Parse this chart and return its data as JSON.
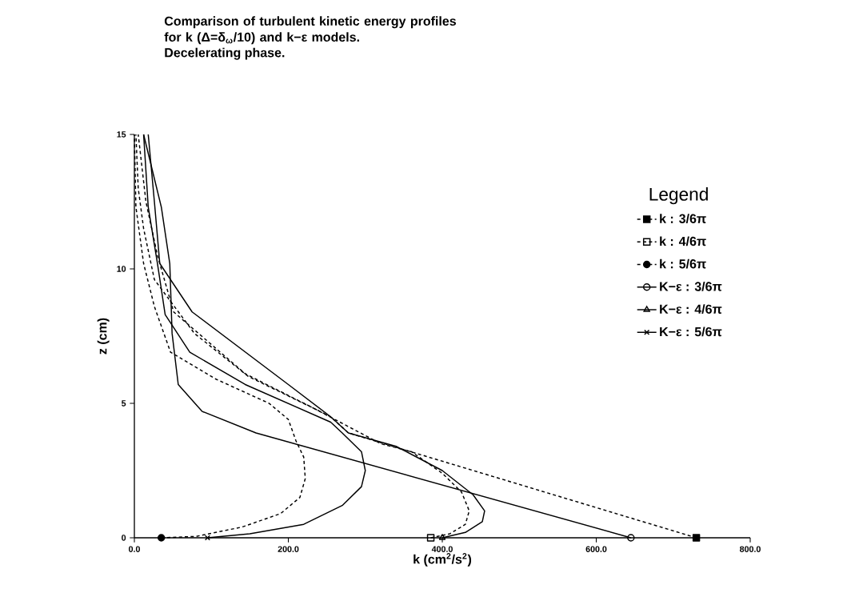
{
  "chart_data": {
    "type": "line",
    "title": "Comparison of turbulent kinetic energy profiles for k (Δ=δ$_{ω}$/10) and k−ε models.",
    "subtitle": "Decelerating phase.",
    "xlabel": "k (cm$^{2}$/s$^{2}$)",
    "ylabel": "z (cm)",
    "legend_title": "Legend",
    "xlim": [
      0,
      800
    ],
    "ylim": [
      0,
      15
    ],
    "xticks": [
      {
        "value": 0,
        "label": "0.0"
      },
      {
        "value": 200,
        "label": "200.0"
      },
      {
        "value": 400,
        "label": "400.0"
      },
      {
        "value": 600,
        "label": "600.0"
      },
      {
        "value": 800,
        "label": "800.0"
      }
    ],
    "yticks": [
      0,
      5,
      10,
      15
    ],
    "grid": false,
    "legend": "right",
    "series": [
      {
        "name": "k     : 3/6π",
        "color": "#000000",
        "line_style": "dashed",
        "x": [
          730,
          278,
          255,
          144,
          51,
          30,
          15,
          5
        ],
        "values": [
          0,
          3.9,
          4.5,
          6.1,
          8.4,
          10.5,
          12.5,
          15
        ]
      },
      {
        "type": "scatter",
        "color": "#000000",
        "marker": "square",
        "x": [
          730
        ],
        "values": [
          0
        ]
      },
      {
        "name": "k     : 4/6π",
        "color": "#000000",
        "line_style": "dashed",
        "x": [
          385,
          410,
          430,
          435,
          425,
          400,
          360,
          320,
          234,
          148,
          78,
          26,
          12,
          5,
          2
        ],
        "values": [
          0,
          0.15,
          0.5,
          1.0,
          1.7,
          2.4,
          3.2,
          3.5,
          4.8,
          6.0,
          7.6,
          9.6,
          11.5,
          13,
          15
        ]
      },
      {
        "type": "scatter",
        "color": "#000000",
        "marker": "square",
        "x": [
          385
        ],
        "values": [
          0
        ]
      },
      {
        "name": "k     : 5/6π",
        "color": "#000000",
        "line_style": "dashed",
        "x": [
          35,
          80,
          140,
          190,
          215,
          222,
          220,
          210,
          200,
          175,
          106,
          47,
          26,
          12,
          2,
          0
        ],
        "values": [
          0,
          0.05,
          0.4,
          0.9,
          1.5,
          2.2,
          3.0,
          3.6,
          4.4,
          5.0,
          5.9,
          6.9,
          8.6,
          10.2,
          12.3,
          15
        ]
      },
      {
        "type": "scatter",
        "color": "#000000",
        "marker": "circle",
        "x": [
          35
        ],
        "values": [
          0
        ]
      },
      {
        "name": "K−ε : 3/6π",
        "color": "#000000",
        "line_style": "solid",
        "x": [
          645,
          158,
          88,
          57,
          49,
          46,
          35,
          12
        ],
        "values": [
          0,
          3.9,
          4.7,
          5.7,
          7.6,
          10.2,
          12.3,
          15
        ]
      },
      {
        "type": "scatter",
        "color": "#000000",
        "marker": "circle",
        "x": [
          645
        ],
        "values": [
          0
        ]
      },
      {
        "name": "K−ε : 4/6π",
        "color": "#000000",
        "line_style": "solid",
        "x": [
          400,
          430,
          452,
          455,
          440,
          400,
          340,
          278,
          255,
          200,
          75,
          33,
          26,
          18
        ],
        "values": [
          0,
          0.2,
          0.6,
          1.0,
          1.6,
          2.5,
          3.4,
          3.9,
          4.5,
          5.7,
          8.4,
          10.2,
          12.5,
          15
        ]
      },
      {
        "type": "scatter",
        "color": "#000000",
        "marker": "triangle",
        "x": [
          400
        ],
        "values": [
          0
        ]
      },
      {
        "name": "K−ε : 5/6π",
        "color": "#000000",
        "line_style": "solid",
        "x": [
          95,
          150,
          220,
          270,
          295,
          300,
          295,
          270,
          255,
          144,
          72,
          40,
          30,
          18,
          12
        ],
        "values": [
          0,
          0.15,
          0.5,
          1.2,
          1.9,
          2.5,
          3.2,
          3.9,
          4.3,
          5.7,
          6.9,
          8.3,
          10.2,
          12.3,
          15
        ]
      },
      {
        "type": "scatter",
        "color": "#000000",
        "marker": "cross",
        "x": [
          95
        ],
        "values": [
          0
        ]
      }
    ]
  }
}
